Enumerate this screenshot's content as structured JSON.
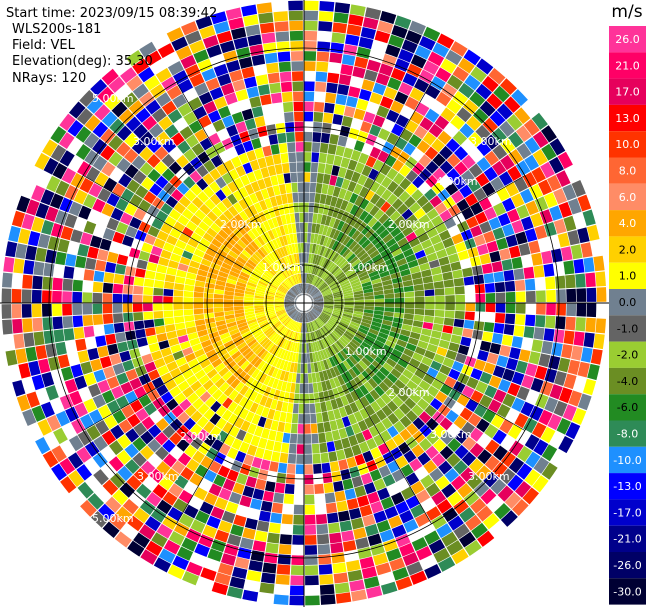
{
  "header": {
    "start_time": "Start time: 2023/09/15 08:39:42",
    "instrument": "WLS200s-181",
    "field": "Field: VEL",
    "elevation": "Elevation(deg): 35.30",
    "nrays": "NRays: 120"
  },
  "range_rings": {
    "labels": [
      "1.00km",
      "2.00km",
      "3.00km",
      "4.00km",
      "5.00km"
    ],
    "label_color": "#ffffff",
    "ring_color": "#000000"
  },
  "colorbar": {
    "unit": "m/s",
    "ticks": [
      "26.0",
      "21.0",
      "17.0",
      "13.0",
      "10.0",
      "8.0",
      "6.0",
      "4.0",
      "2.0",
      "1.0",
      "0.0",
      "-1.0",
      "-2.0",
      "-4.0",
      "-6.0",
      "-8.0",
      "-10.0",
      "-13.0",
      "-17.0",
      "-21.0",
      "-26.0",
      "-30.0"
    ],
    "colors": [
      "#ff3399",
      "#ff0066",
      "#e6005c",
      "#ff0000",
      "#ff3300",
      "#ff6633",
      "#ff8c66",
      "#ffa600",
      "#ffd000",
      "#ffff00",
      "#708090",
      "#646464",
      "#9acd32",
      "#6b8e23",
      "#228b22",
      "#2e8b57",
      "#1e90ff",
      "#0000ff",
      "#0000cc",
      "#00008b",
      "#000066",
      "#000033"
    ]
  }
}
